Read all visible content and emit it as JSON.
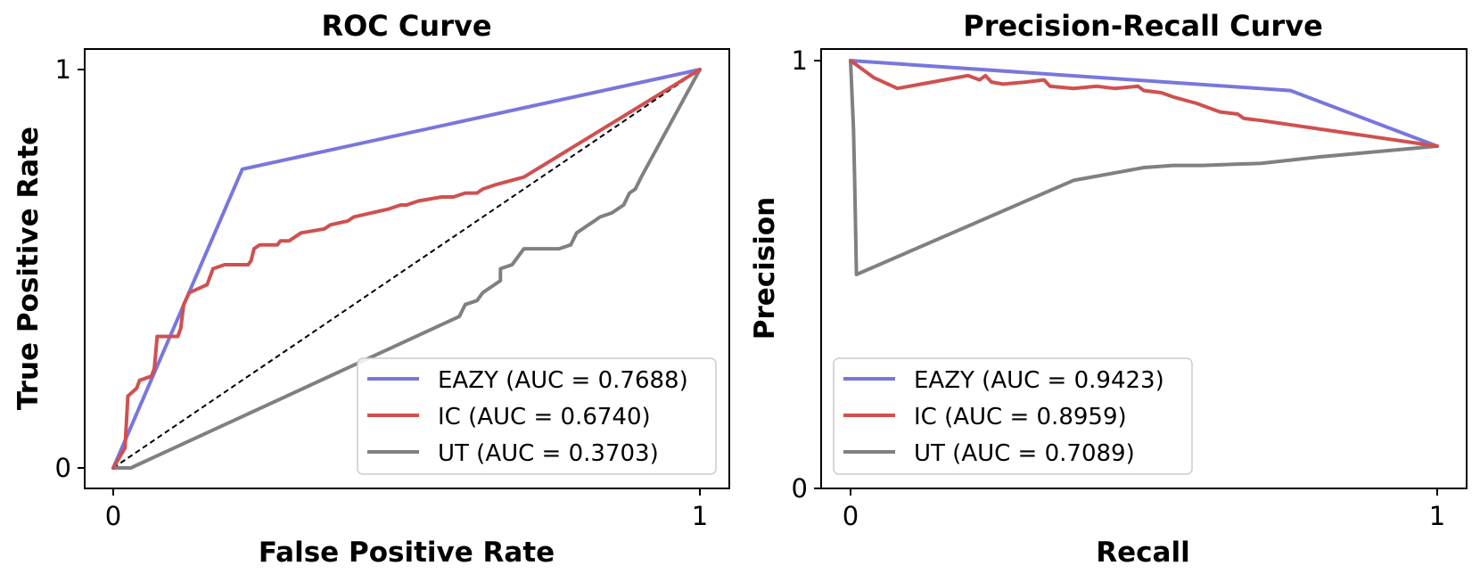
{
  "colors": {
    "EAZY": "#7777dd",
    "IC": "#d05050",
    "UT": "#808080",
    "chance": "#000000"
  },
  "chart_data": [
    {
      "type": "line",
      "title": "ROC Curve",
      "xlabel": "False Positive Rate",
      "ylabel": "True Positive Rate",
      "xlim": [
        0,
        1
      ],
      "ylim": [
        0,
        1
      ],
      "xticks": [
        "0",
        "1"
      ],
      "yticks": [
        "0",
        "1"
      ],
      "legend_position": "lower-right",
      "chance_line": [
        [
          0,
          0
        ],
        [
          1,
          1
        ]
      ],
      "series": [
        {
          "name": "EAZY",
          "label": "EAZY (AUC = 0.7688)",
          "points": [
            [
              0,
              0
            ],
            [
              0.22,
              0.75
            ],
            [
              1,
              1
            ]
          ]
        },
        {
          "name": "IC",
          "label": "IC (AUC = 0.6740)",
          "points": [
            [
              0,
              0
            ],
            [
              0.02,
              0.05
            ],
            [
              0.025,
              0.18
            ],
            [
              0.04,
              0.2
            ],
            [
              0.045,
              0.22
            ],
            [
              0.065,
              0.23
            ],
            [
              0.07,
              0.25
            ],
            [
              0.075,
              0.33
            ],
            [
              0.11,
              0.33
            ],
            [
              0.115,
              0.35
            ],
            [
              0.12,
              0.41
            ],
            [
              0.13,
              0.44
            ],
            [
              0.16,
              0.46
            ],
            [
              0.165,
              0.48
            ],
            [
              0.17,
              0.5
            ],
            [
              0.19,
              0.51
            ],
            [
              0.23,
              0.51
            ],
            [
              0.235,
              0.52
            ],
            [
              0.24,
              0.55
            ],
            [
              0.25,
              0.56
            ],
            [
              0.28,
              0.56
            ],
            [
              0.285,
              0.57
            ],
            [
              0.3,
              0.57
            ],
            [
              0.32,
              0.59
            ],
            [
              0.36,
              0.6
            ],
            [
              0.37,
              0.61
            ],
            [
              0.4,
              0.62
            ],
            [
              0.41,
              0.63
            ],
            [
              0.44,
              0.64
            ],
            [
              0.47,
              0.65
            ],
            [
              0.49,
              0.66
            ],
            [
              0.5,
              0.66
            ],
            [
              0.52,
              0.67
            ],
            [
              0.56,
              0.68
            ],
            [
              0.58,
              0.68
            ],
            [
              0.6,
              0.69
            ],
            [
              0.62,
              0.69
            ],
            [
              0.63,
              0.7
            ],
            [
              0.65,
              0.71
            ],
            [
              0.7,
              0.73
            ],
            [
              1,
              1
            ]
          ]
        },
        {
          "name": "UT",
          "label": "UT (AUC = 0.3703)",
          "points": [
            [
              0,
              0
            ],
            [
              0.03,
              0.0
            ],
            [
              0.59,
              0.38
            ],
            [
              0.6,
              0.41
            ],
            [
              0.62,
              0.42
            ],
            [
              0.63,
              0.44
            ],
            [
              0.65,
              0.46
            ],
            [
              0.66,
              0.47
            ],
            [
              0.66,
              0.5
            ],
            [
              0.68,
              0.51
            ],
            [
              0.69,
              0.53
            ],
            [
              0.7,
              0.55
            ],
            [
              0.76,
              0.55
            ],
            [
              0.78,
              0.56
            ],
            [
              0.79,
              0.59
            ],
            [
              0.8,
              0.6
            ],
            [
              0.81,
              0.61
            ],
            [
              0.82,
              0.62
            ],
            [
              0.83,
              0.63
            ],
            [
              0.85,
              0.64
            ],
            [
              0.86,
              0.65
            ],
            [
              0.87,
              0.66
            ],
            [
              0.88,
              0.69
            ],
            [
              0.89,
              0.7
            ],
            [
              0.9,
              0.73
            ],
            [
              1,
              1
            ]
          ]
        }
      ]
    },
    {
      "type": "line",
      "title": "Precision-Recall Curve",
      "xlabel": "Recall",
      "ylabel": "Precision",
      "xlim": [
        0,
        1
      ],
      "ylim": [
        0,
        1
      ],
      "xticks": [
        "0",
        "1"
      ],
      "yticks": [
        "0",
        "1"
      ],
      "legend_position": "lower-left",
      "series": [
        {
          "name": "EAZY",
          "label": "EAZY (AUC = 0.9423)",
          "points": [
            [
              0,
              1
            ],
            [
              0.75,
              0.93
            ],
            [
              1,
              0.8
            ]
          ]
        },
        {
          "name": "IC",
          "label": "IC (AUC = 0.8959)",
          "points": [
            [
              0,
              1
            ],
            [
              0.02,
              0.98
            ],
            [
              0.04,
              0.96
            ],
            [
              0.08,
              0.935
            ],
            [
              0.12,
              0.945
            ],
            [
              0.16,
              0.955
            ],
            [
              0.2,
              0.965
            ],
            [
              0.22,
              0.955
            ],
            [
              0.23,
              0.965
            ],
            [
              0.24,
              0.95
            ],
            [
              0.26,
              0.945
            ],
            [
              0.3,
              0.95
            ],
            [
              0.33,
              0.955
            ],
            [
              0.34,
              0.94
            ],
            [
              0.38,
              0.935
            ],
            [
              0.42,
              0.94
            ],
            [
              0.45,
              0.935
            ],
            [
              0.49,
              0.94
            ],
            [
              0.5,
              0.93
            ],
            [
              0.53,
              0.925
            ],
            [
              0.55,
              0.915
            ],
            [
              0.59,
              0.9
            ],
            [
              0.63,
              0.88
            ],
            [
              0.66,
              0.875
            ],
            [
              0.67,
              0.865
            ],
            [
              0.7,
              0.86
            ],
            [
              1,
              0.8
            ]
          ]
        },
        {
          "name": "UT",
          "label": "UT (AUC = 0.7089)",
          "points": [
            [
              0,
              1
            ],
            [
              0.005,
              0.84
            ],
            [
              0.007,
              0.72
            ],
            [
              0.01,
              0.5
            ],
            [
              0.38,
              0.72
            ],
            [
              0.42,
              0.73
            ],
            [
              0.46,
              0.74
            ],
            [
              0.5,
              0.75
            ],
            [
              0.55,
              0.755
            ],
            [
              0.6,
              0.755
            ],
            [
              0.7,
              0.76
            ],
            [
              0.8,
              0.775
            ],
            [
              1,
              0.8
            ]
          ]
        }
      ]
    }
  ]
}
